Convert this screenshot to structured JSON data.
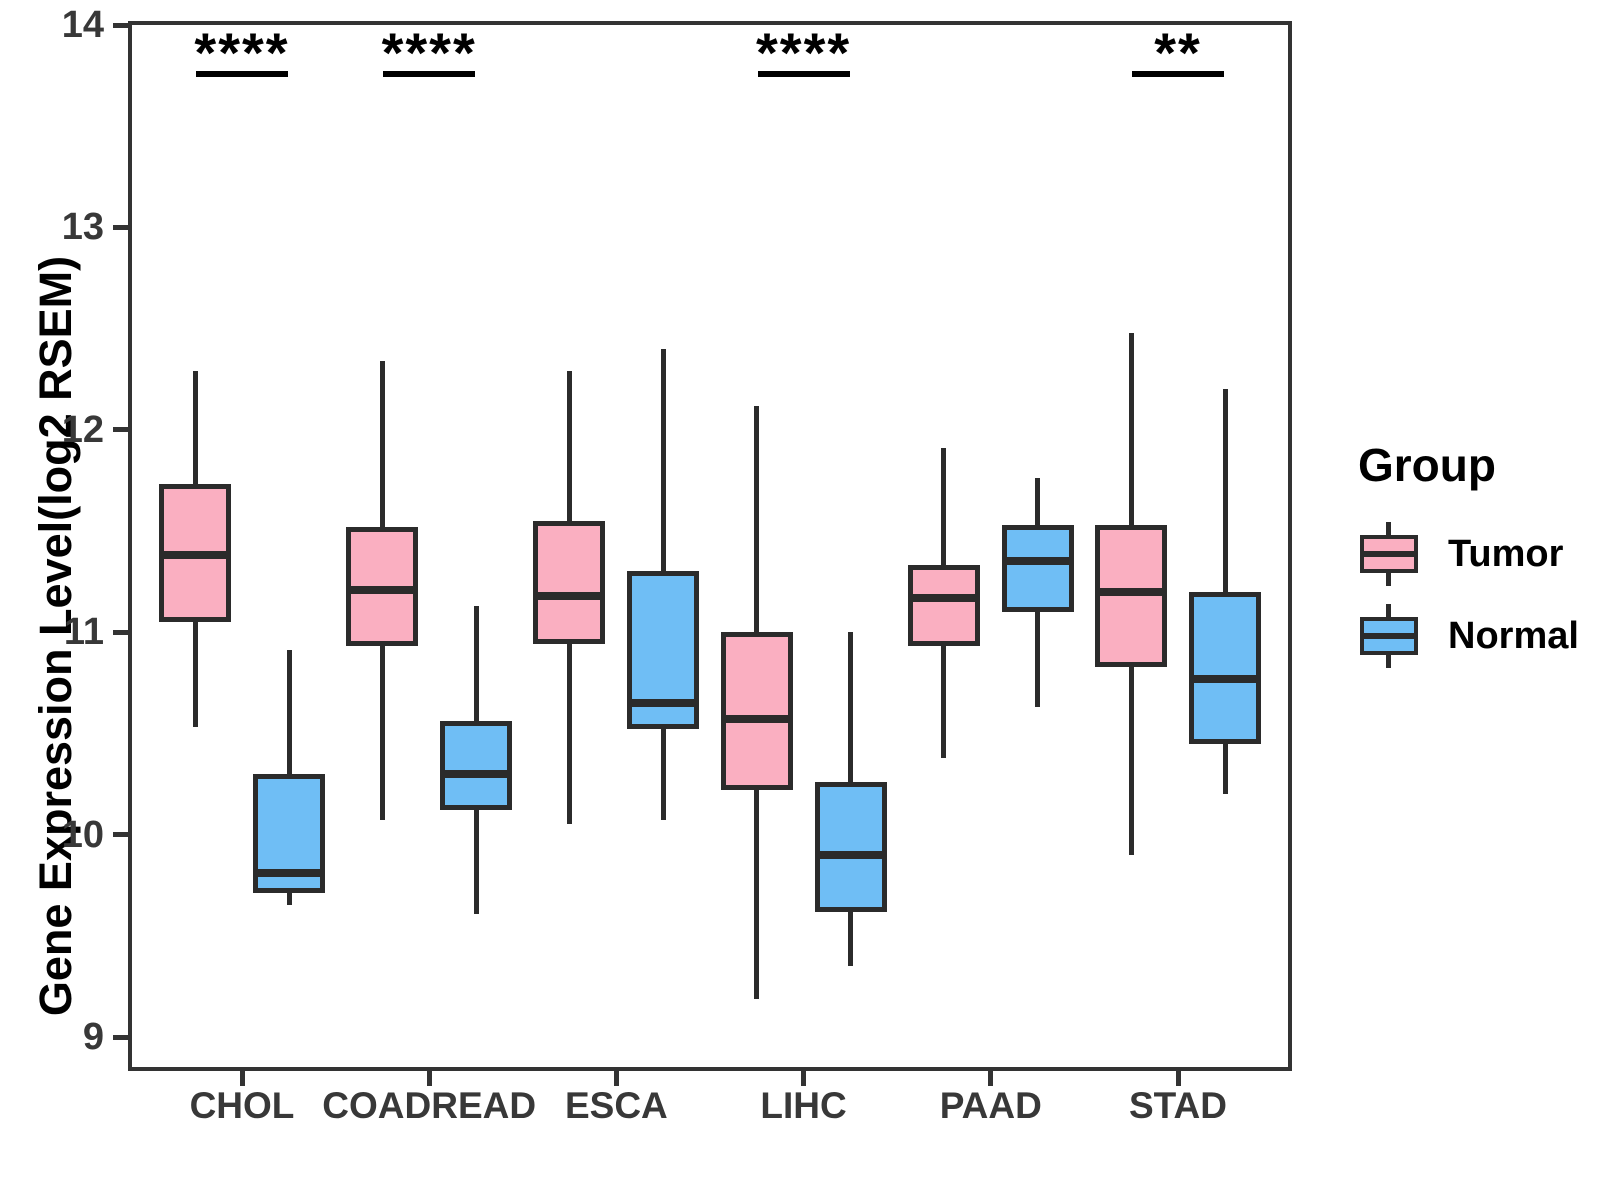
{
  "chart_data": {
    "type": "box",
    "title": "",
    "xlabel": "",
    "ylabel": "Gene Expression Level(log2 RSEM)",
    "ylim": [
      8.84,
      14
    ],
    "yticks": [
      9,
      10,
      11,
      12,
      13,
      14
    ],
    "grid": false,
    "legend_position": "right",
    "categories": [
      "CHOL",
      "COADREAD",
      "ESCA",
      "LIHC",
      "PAAD",
      "STAD"
    ],
    "series": [
      {
        "name": "Tumor",
        "color": "#FAAFC1",
        "boxes": [
          {
            "category": "CHOL",
            "whisker_low": 10.53,
            "q1": 11.05,
            "median": 11.38,
            "q3": 11.73,
            "whisker_high": 12.29
          },
          {
            "category": "COADREAD",
            "whisker_low": 10.07,
            "q1": 10.93,
            "median": 11.21,
            "q3": 11.52,
            "whisker_high": 12.34
          },
          {
            "category": "ESCA",
            "whisker_low": 10.05,
            "q1": 10.94,
            "median": 11.18,
            "q3": 11.55,
            "whisker_high": 12.29
          },
          {
            "category": "LIHC",
            "whisker_low": 9.19,
            "q1": 10.22,
            "median": 10.57,
            "q3": 11.0,
            "whisker_high": 12.12
          },
          {
            "category": "PAAD",
            "whisker_low": 10.38,
            "q1": 10.93,
            "median": 11.17,
            "q3": 11.33,
            "whisker_high": 11.91
          },
          {
            "category": "STAD",
            "whisker_low": 9.9,
            "q1": 10.83,
            "median": 11.2,
            "q3": 11.53,
            "whisker_high": 12.48
          }
        ]
      },
      {
        "name": "Normal",
        "color": "#6FBEF5",
        "boxes": [
          {
            "category": "CHOL",
            "whisker_low": 9.65,
            "q1": 9.71,
            "median": 9.81,
            "q3": 10.3,
            "whisker_high": 10.91
          },
          {
            "category": "COADREAD",
            "whisker_low": 9.61,
            "q1": 10.12,
            "median": 10.3,
            "q3": 10.56,
            "whisker_high": 11.13
          },
          {
            "category": "ESCA",
            "whisker_low": 10.07,
            "q1": 10.52,
            "median": 10.65,
            "q3": 11.3,
            "whisker_high": 12.4
          },
          {
            "category": "LIHC",
            "whisker_low": 9.35,
            "q1": 9.62,
            "median": 9.9,
            "q3": 10.26,
            "whisker_high": 11.0
          },
          {
            "category": "PAAD",
            "whisker_low": 10.63,
            "q1": 11.1,
            "median": 11.35,
            "q3": 11.53,
            "whisker_high": 11.76
          },
          {
            "category": "STAD",
            "whisker_low": 10.2,
            "q1": 10.45,
            "median": 10.77,
            "q3": 11.2,
            "whisker_high": 12.2
          }
        ]
      }
    ],
    "significance": [
      {
        "category": "CHOL",
        "label": "****"
      },
      {
        "category": "COADREAD",
        "label": "****"
      },
      {
        "category": "LIHC",
        "label": "****"
      },
      {
        "category": "STAD",
        "label": "**"
      }
    ],
    "legend": {
      "title": "Group",
      "items": [
        {
          "label": "Tumor",
          "color": "#FAAFC1"
        },
        {
          "label": "Normal",
          "color": "#6FBEF5"
        }
      ]
    },
    "colors": {
      "stroke": "#2B2B2B",
      "panel_border": "#333333",
      "tick_text": "#383838",
      "annotation": "#000000"
    }
  }
}
